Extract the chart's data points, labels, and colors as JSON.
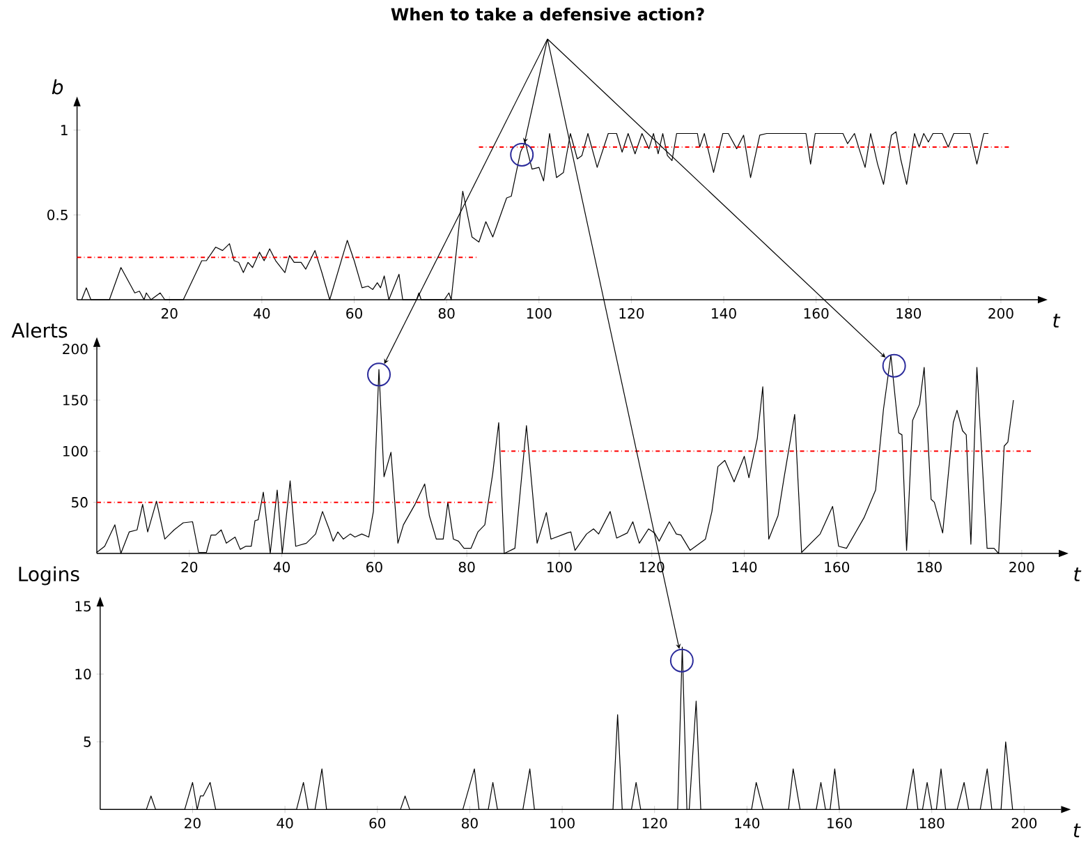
{
  "chart_data": [
    {
      "type": "line",
      "title": "When to take a defensive action?",
      "xlabel": "t",
      "ylabel": "b",
      "xlim": [
        0,
        208
      ],
      "ylim": [
        0,
        1.14
      ],
      "xticks": [
        20,
        40,
        60,
        80,
        100,
        120,
        140,
        160,
        180,
        200
      ],
      "yticks": [
        0.5,
        1
      ],
      "series": [
        {
          "color": "#000000",
          "x": [
            1,
            2,
            3,
            7,
            9.5,
            12.5,
            13.5,
            14.5,
            15,
            16,
            18,
            19,
            23,
            27,
            28,
            30,
            31.5,
            33,
            34,
            35,
            36,
            37,
            38,
            39.5,
            40.5,
            41.7,
            43,
            45,
            46,
            47,
            48.5,
            49.5,
            51.5,
            53,
            54.7,
            58.5,
            60,
            61.7,
            63,
            64,
            65,
            65.7,
            66.5,
            67.5,
            69.7,
            70.5,
            73.5,
            74,
            74.5,
            79.5,
            80.5,
            81,
            83.5,
            85.5,
            87,
            88.5,
            90,
            93,
            94,
            96,
            97,
            98.5,
            100,
            101,
            102.3,
            103.8,
            105.3,
            106.8,
            108.3,
            109.3,
            110.6,
            112.6,
            115,
            116.8,
            118,
            119.3,
            120.8,
            122.3,
            123.8,
            124.8,
            125.8,
            126.8,
            127.8,
            128.8,
            129.8,
            132.8,
            134.3,
            134.8,
            135.8,
            137.8,
            139.8,
            141,
            142.8,
            144.3,
            145.8,
            147.8,
            149.3,
            157.8,
            158.8,
            159.8,
            165.8,
            166.8,
            168.3,
            169.3,
            170.6,
            171.8,
            173.3,
            174.6,
            176.3,
            177.3,
            178.3,
            179.6,
            181.3,
            182.3,
            183.3,
            184.3,
            185.3,
            187.3,
            188.6,
            189.8,
            193.3,
            194.8,
            196.3,
            197.3
          ],
          "values": [
            0,
            0.07,
            0,
            0,
            0.19,
            0.04,
            0.05,
            0,
            0.04,
            0,
            0.04,
            0,
            0,
            0.23,
            0.23,
            0.31,
            0.29,
            0.33,
            0.23,
            0.22,
            0.16,
            0.22,
            0.19,
            0.28,
            0.23,
            0.3,
            0.23,
            0.16,
            0.26,
            0.22,
            0.22,
            0.18,
            0.29,
            0.16,
            0,
            0.35,
            0.23,
            0.07,
            0.08,
            0.06,
            0.1,
            0.07,
            0.14,
            0,
            0.15,
            0,
            0,
            0.04,
            0,
            0,
            0.04,
            0,
            0.64,
            0.37,
            0.34,
            0.46,
            0.37,
            0.6,
            0.61,
            0.87,
            0.93,
            0.77,
            0.78,
            0.7,
            0.98,
            0.72,
            0.75,
            0.98,
            0.83,
            0.85,
            0.98,
            0.78,
            0.98,
            0.98,
            0.87,
            0.98,
            0.86,
            0.98,
            0.89,
            0.98,
            0.86,
            0.98,
            0.85,
            0.82,
            0.98,
            0.98,
            0.98,
            0.9,
            0.98,
            0.75,
            0.98,
            0.98,
            0.89,
            0.97,
            0.72,
            0.97,
            0.98,
            0.98,
            0.8,
            0.98,
            0.98,
            0.92,
            0.98,
            0.89,
            0.78,
            0.98,
            0.8,
            0.68,
            0.97,
            0.99,
            0.83,
            0.68,
            0.98,
            0.9,
            0.98,
            0.93,
            0.98,
            0.98,
            0.9,
            0.98,
            0.98,
            0.8,
            0.98,
            0.98
          ]
        },
        {
          "color": "#ff0000",
          "line_style": "dashdot",
          "x": [
            0,
            86.5
          ],
          "values": [
            0.25,
            0.25
          ]
        },
        {
          "color": "#ff0000",
          "line_style": "dashdot",
          "x": [
            87,
            202
          ],
          "values": [
            0.9,
            0.9
          ]
        }
      ]
    },
    {
      "type": "line",
      "xlabel": "t",
      "ylabel": "Alerts",
      "xlim": [
        0,
        208
      ],
      "ylim": [
        0,
        202
      ],
      "xticks": [
        20,
        40,
        60,
        80,
        100,
        120,
        140,
        160,
        180,
        200
      ],
      "yticks": [
        50,
        100,
        150,
        200
      ],
      "series": [
        {
          "color": "#000000",
          "x": [
            0,
            1.7,
            3.9,
            5.2,
            7,
            8.7,
            9.9,
            11,
            12.9,
            14.7,
            16.7,
            18.7,
            20.7,
            22,
            23.7,
            24.7,
            25.7,
            26.9,
            28,
            29.9,
            31,
            32.2,
            33.4,
            34.2,
            34.9,
            36,
            36.7,
            37.5,
            39,
            40.1,
            41.8,
            43,
            45.3,
            47.3,
            48.8,
            50.3,
            51.1,
            52.1,
            53.3,
            54.8,
            55.8,
            57.3,
            58.8,
            59.8,
            61,
            62.1,
            63.6,
            65.1,
            66.3,
            68.8,
            70.9,
            71.9,
            73.4,
            74.9,
            75.9,
            77.1,
            78.2,
            79.4,
            80.9,
            82.4,
            83.9,
            85.6,
            86.9,
            88.1,
            90.4,
            92.9,
            95.2,
            97.2,
            98.2,
            101.7,
            102.5,
            103.4,
            105.9,
            107.4,
            108.5,
            111,
            112.4,
            114.7,
            115.9,
            117.3,
            119.3,
            120.6,
            121.6,
            123.8,
            125.3,
            126.3,
            128.3,
            131.6,
            133,
            134.3,
            135.8,
            137.8,
            140,
            141,
            142.8,
            144,
            145.3,
            147.3,
            148.6,
            150.9,
            152.4,
            156.4,
            159.1,
            160.4,
            162.1,
            165.9,
            168.4,
            170.1,
            171.7,
            173.4,
            174.1,
            175.1,
            176.4,
            177.9,
            178.9,
            180.4,
            181.1,
            182.9,
            185.2,
            186,
            187.2,
            188,
            189,
            190.3,
            192.5,
            194,
            195,
            196.2,
            197,
            198.2
          ],
          "values": [
            1,
            7,
            28,
            0,
            21,
            23,
            48,
            21,
            51,
            14,
            23,
            30,
            31,
            1,
            1,
            18,
            18,
            23,
            10,
            16,
            4,
            7,
            7,
            32,
            33,
            60,
            32,
            0,
            62,
            0,
            71,
            7,
            10,
            19,
            41,
            23,
            12,
            21,
            14,
            19,
            16,
            19,
            16,
            41,
            180,
            75,
            99,
            10,
            28,
            48,
            68,
            37,
            14,
            14,
            50,
            14,
            12,
            5,
            5,
            21,
            28,
            78,
            128,
            0,
            5,
            125,
            10,
            40,
            14,
            20,
            21,
            3,
            19,
            24,
            19,
            41,
            15,
            20,
            31,
            10,
            24,
            20,
            12,
            31,
            19,
            18,
            3,
            14,
            41,
            85,
            91,
            70,
            95,
            74,
            112,
            163,
            14,
            37,
            74,
            136,
            1,
            19,
            46,
            7,
            5,
            35,
            62,
            141,
            194,
            118,
            116,
            3,
            130,
            146,
            182,
            53,
            50,
            20,
            128,
            140,
            120,
            116,
            9,
            182,
            5,
            5,
            0,
            105,
            109,
            150
          ]
        },
        {
          "color": "#ff0000",
          "line_style": "dashdot",
          "x": [
            0,
            86.4
          ],
          "values": [
            50,
            50
          ]
        },
        {
          "color": "#ff0000",
          "line_style": "dashdot",
          "x": [
            87.4,
            202.5
          ],
          "values": [
            100,
            100
          ]
        }
      ]
    },
    {
      "type": "line",
      "xlabel": "t",
      "ylabel": "Logins",
      "xlim": [
        0,
        208
      ],
      "ylim": [
        0,
        15
      ],
      "xticks": [
        20,
        40,
        60,
        80,
        100,
        120,
        140,
        160,
        180,
        200
      ],
      "yticks": [
        5,
        10,
        15
      ],
      "series": [
        {
          "color": "#000000",
          "x": [
            0,
            10,
            11,
            12,
            18.3,
            20,
            21,
            21.7,
            22.3,
            23.8,
            25,
            42.5,
            44,
            45,
            46.5,
            48,
            49,
            65,
            66,
            67,
            78.5,
            81,
            82,
            84,
            85,
            86,
            91.5,
            93,
            94,
            111,
            112,
            113,
            115,
            116,
            117,
            125,
            126,
            127,
            127.5,
            129,
            130,
            141,
            142,
            143.5,
            149,
            150,
            151.5,
            155,
            156,
            157,
            158,
            159,
            160,
            174.5,
            176,
            177,
            178,
            179,
            180,
            181,
            182,
            183,
            185.5,
            187,
            188,
            190.5,
            192,
            193,
            195,
            196,
            197.5
          ],
          "values": [
            0,
            0,
            1,
            0,
            0,
            2,
            0,
            1,
            1,
            2,
            0,
            0,
            2,
            0,
            0,
            3,
            0,
            0,
            1,
            0,
            0,
            3,
            0,
            0,
            2,
            0,
            0,
            3,
            0,
            0,
            7,
            0,
            0,
            2,
            0,
            0,
            12,
            0,
            0,
            8,
            0,
            0,
            2,
            0,
            0,
            3,
            0,
            0,
            2,
            0,
            0,
            3,
            0,
            0,
            3,
            0,
            0,
            2,
            0,
            0,
            3,
            0,
            0,
            2,
            0,
            0,
            3,
            0,
            0,
            5,
            0
          ]
        }
      ]
    }
  ]
}
